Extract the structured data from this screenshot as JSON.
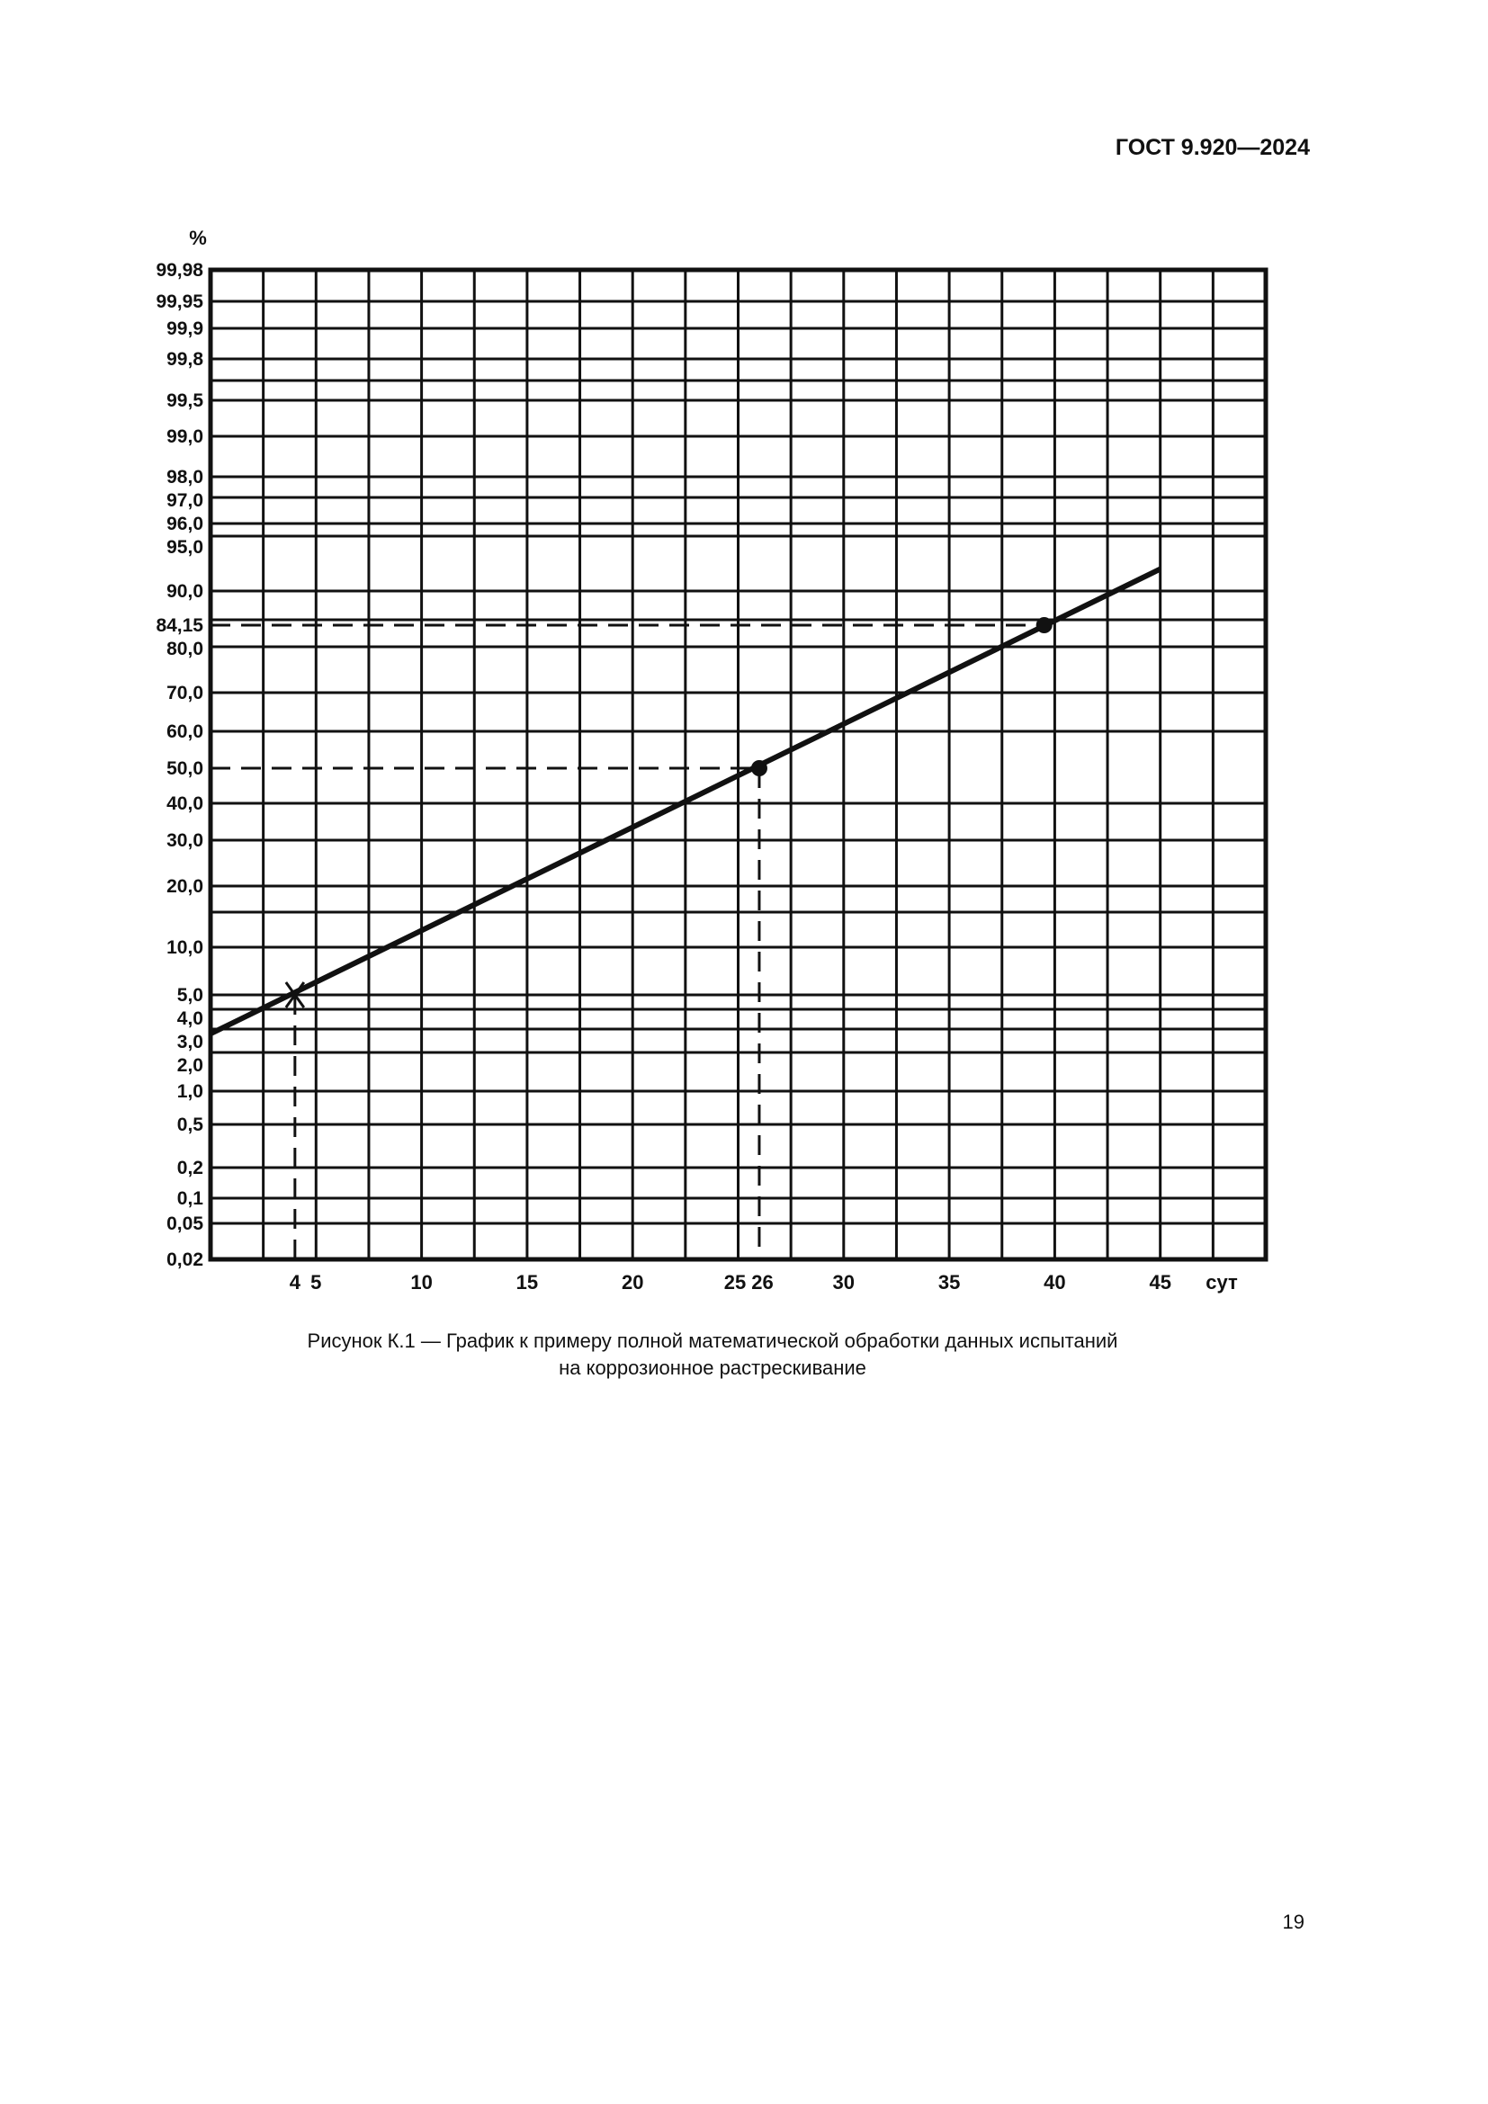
{
  "header": {
    "doc_id": "ГОСТ 9.920—2024"
  },
  "page_number": "19",
  "caption": {
    "line1": "Рисунок К.1 — График к примеру полной математической обработки данных испытаний",
    "line2": "на коррозионное растрескивание"
  },
  "chart_data": {
    "type": "line",
    "title": "",
    "xlabel": "сут",
    "ylabel": "%",
    "xlim": [
      0,
      50
    ],
    "ylim": [
      0.02,
      99.98
    ],
    "y_scale": "probability",
    "grid": true,
    "x_ticks": [
      "4",
      "5",
      "10",
      "15",
      "20",
      "25",
      "26",
      "30",
      "35",
      "40",
      "45"
    ],
    "x_tick_values": [
      4,
      5,
      10,
      15,
      20,
      25,
      26,
      30,
      35,
      40,
      45
    ],
    "y_ticks": [
      "99,98",
      "99,95",
      "99,9",
      "99,8",
      "99,5",
      "99,0",
      "98,0",
      "97,0",
      "96,0",
      "95,0",
      "90,0",
      "84,15",
      "80,0",
      "70,0",
      "60,0",
      "50,0",
      "40,0",
      "30,0",
      "20,0",
      "10,0",
      "5,0",
      "4,0",
      "3,0",
      "2,0",
      "1,0",
      "0,5",
      "0,2",
      "0,1",
      "0,05",
      "0,02"
    ],
    "y_tick_values": [
      99.98,
      99.95,
      99.9,
      99.8,
      99.5,
      99.0,
      98.0,
      97.0,
      96.0,
      95.0,
      90.0,
      84.15,
      80.0,
      70.0,
      60.0,
      50.0,
      40.0,
      30.0,
      20.0,
      10.0,
      5.0,
      4.0,
      3.0,
      2.0,
      1.0,
      0.5,
      0.2,
      0.1,
      0.05,
      0.02
    ],
    "y_gridlines": [
      99.95,
      99.9,
      99.8,
      99.7,
      99.5,
      99.0,
      98.0,
      97.0,
      96.0,
      95.0,
      90.0,
      85.0,
      80.0,
      70.0,
      60.0,
      40.0,
      30.0,
      20.0,
      15.0,
      10.0,
      5.0,
      4.0,
      3.0,
      2.0,
      1.0,
      0.5,
      0.2,
      0.1,
      0.05
    ],
    "x_grid_step": 2.5,
    "fit_line": {
      "x": [
        0,
        45
      ],
      "y": [
        2.8,
        92.0
      ]
    },
    "marked_points": [
      {
        "x": 4,
        "y": 5.0,
        "marker": "cross"
      },
      {
        "x": 26,
        "y": 50.0,
        "marker": "dot"
      },
      {
        "x": 39.5,
        "y": 84.15,
        "marker": "dot"
      }
    ],
    "reference_lines": [
      {
        "type": "horizontal",
        "y": 84.15,
        "to_x": 39.5
      },
      {
        "type": "horizontal",
        "y": 50.0,
        "to_x": 26
      },
      {
        "type": "vertical",
        "x": 4,
        "from_y": 5.0
      },
      {
        "type": "vertical",
        "x": 26,
        "from_y": 50.0
      }
    ],
    "line_color": "#111111"
  }
}
